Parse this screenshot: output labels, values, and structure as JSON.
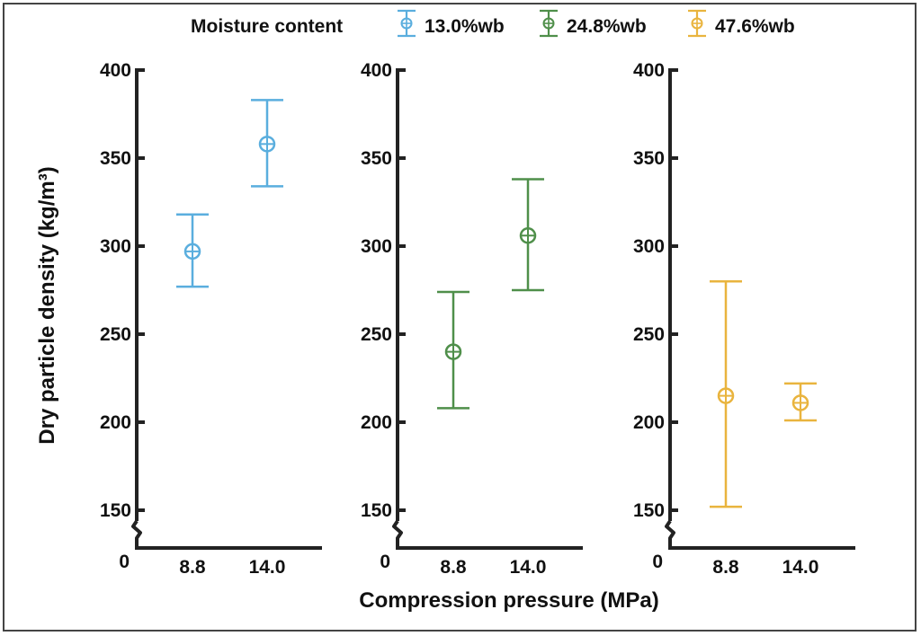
{
  "chart_data": {
    "type": "scatter",
    "subtype": "point-with-error-bars, three panels",
    "xlabel": "Compression pressure (MPa)",
    "ylabel": "Dry particle density (kg/m³)",
    "ylim": [
      150,
      400
    ],
    "y_ticks": [
      150,
      200,
      250,
      300,
      350,
      400
    ],
    "y_zero_label": "0",
    "y_axis_break": true,
    "categories": [
      "8.8",
      "14.0"
    ],
    "legend": {
      "title": "Moisture content",
      "position": "top"
    },
    "series": [
      {
        "name": "13.0%wb",
        "color": "#5aaede",
        "points": [
          {
            "x": "8.8",
            "y": 297,
            "lower": 277,
            "upper": 318
          },
          {
            "x": "14.0",
            "y": 358,
            "lower": 334,
            "upper": 383
          }
        ]
      },
      {
        "name": "24.8%wb",
        "color": "#4f8f4a",
        "points": [
          {
            "x": "8.8",
            "y": 240,
            "lower": 208,
            "upper": 274
          },
          {
            "x": "14.0",
            "y": 306,
            "lower": 275,
            "upper": 338
          }
        ]
      },
      {
        "name": "47.6%wb",
        "color": "#e9b43e",
        "points": [
          {
            "x": "8.8",
            "y": 215,
            "lower": 152,
            "upper": 280
          },
          {
            "x": "14.0",
            "y": 211,
            "lower": 201,
            "upper": 222
          }
        ]
      }
    ]
  }
}
